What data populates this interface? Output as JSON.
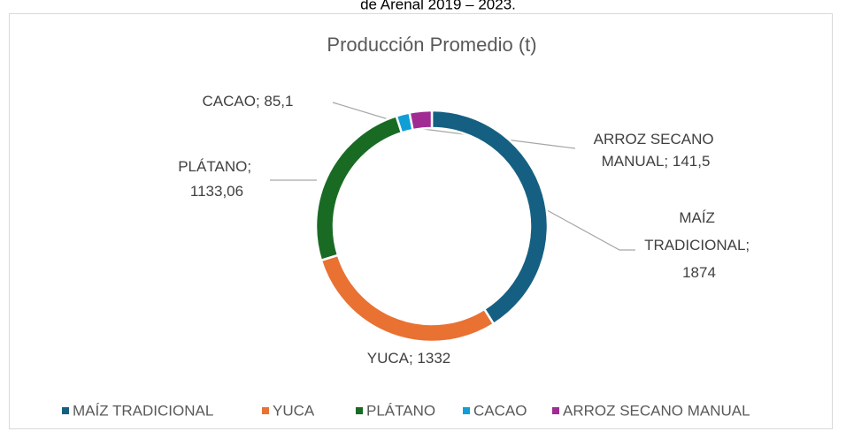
{
  "caption": "de Arenal 2019 – 2023.",
  "chart_data": {
    "type": "donut",
    "title": "Producción Promedio (t)",
    "categories": [
      "MAÍZ TRADICIONAL",
      "YUCA",
      "PLÁTANO",
      "CACAO",
      "ARROZ SECANO MANUAL"
    ],
    "values": [
      1874,
      1332,
      1133.06,
      85.1,
      141.5
    ],
    "value_labels": [
      "MAÍZ TRADICIONAL; 1874",
      "YUCA; 1332",
      "PLÁTANO; 1133,06",
      "CACAO; 85,1",
      "ARROZ SECANO MANUAL; 141,5"
    ],
    "colors": [
      "#156082",
      "#e97132",
      "#196b24",
      "#0f9ed5",
      "#a02b93"
    ],
    "legend": "bottom"
  }
}
